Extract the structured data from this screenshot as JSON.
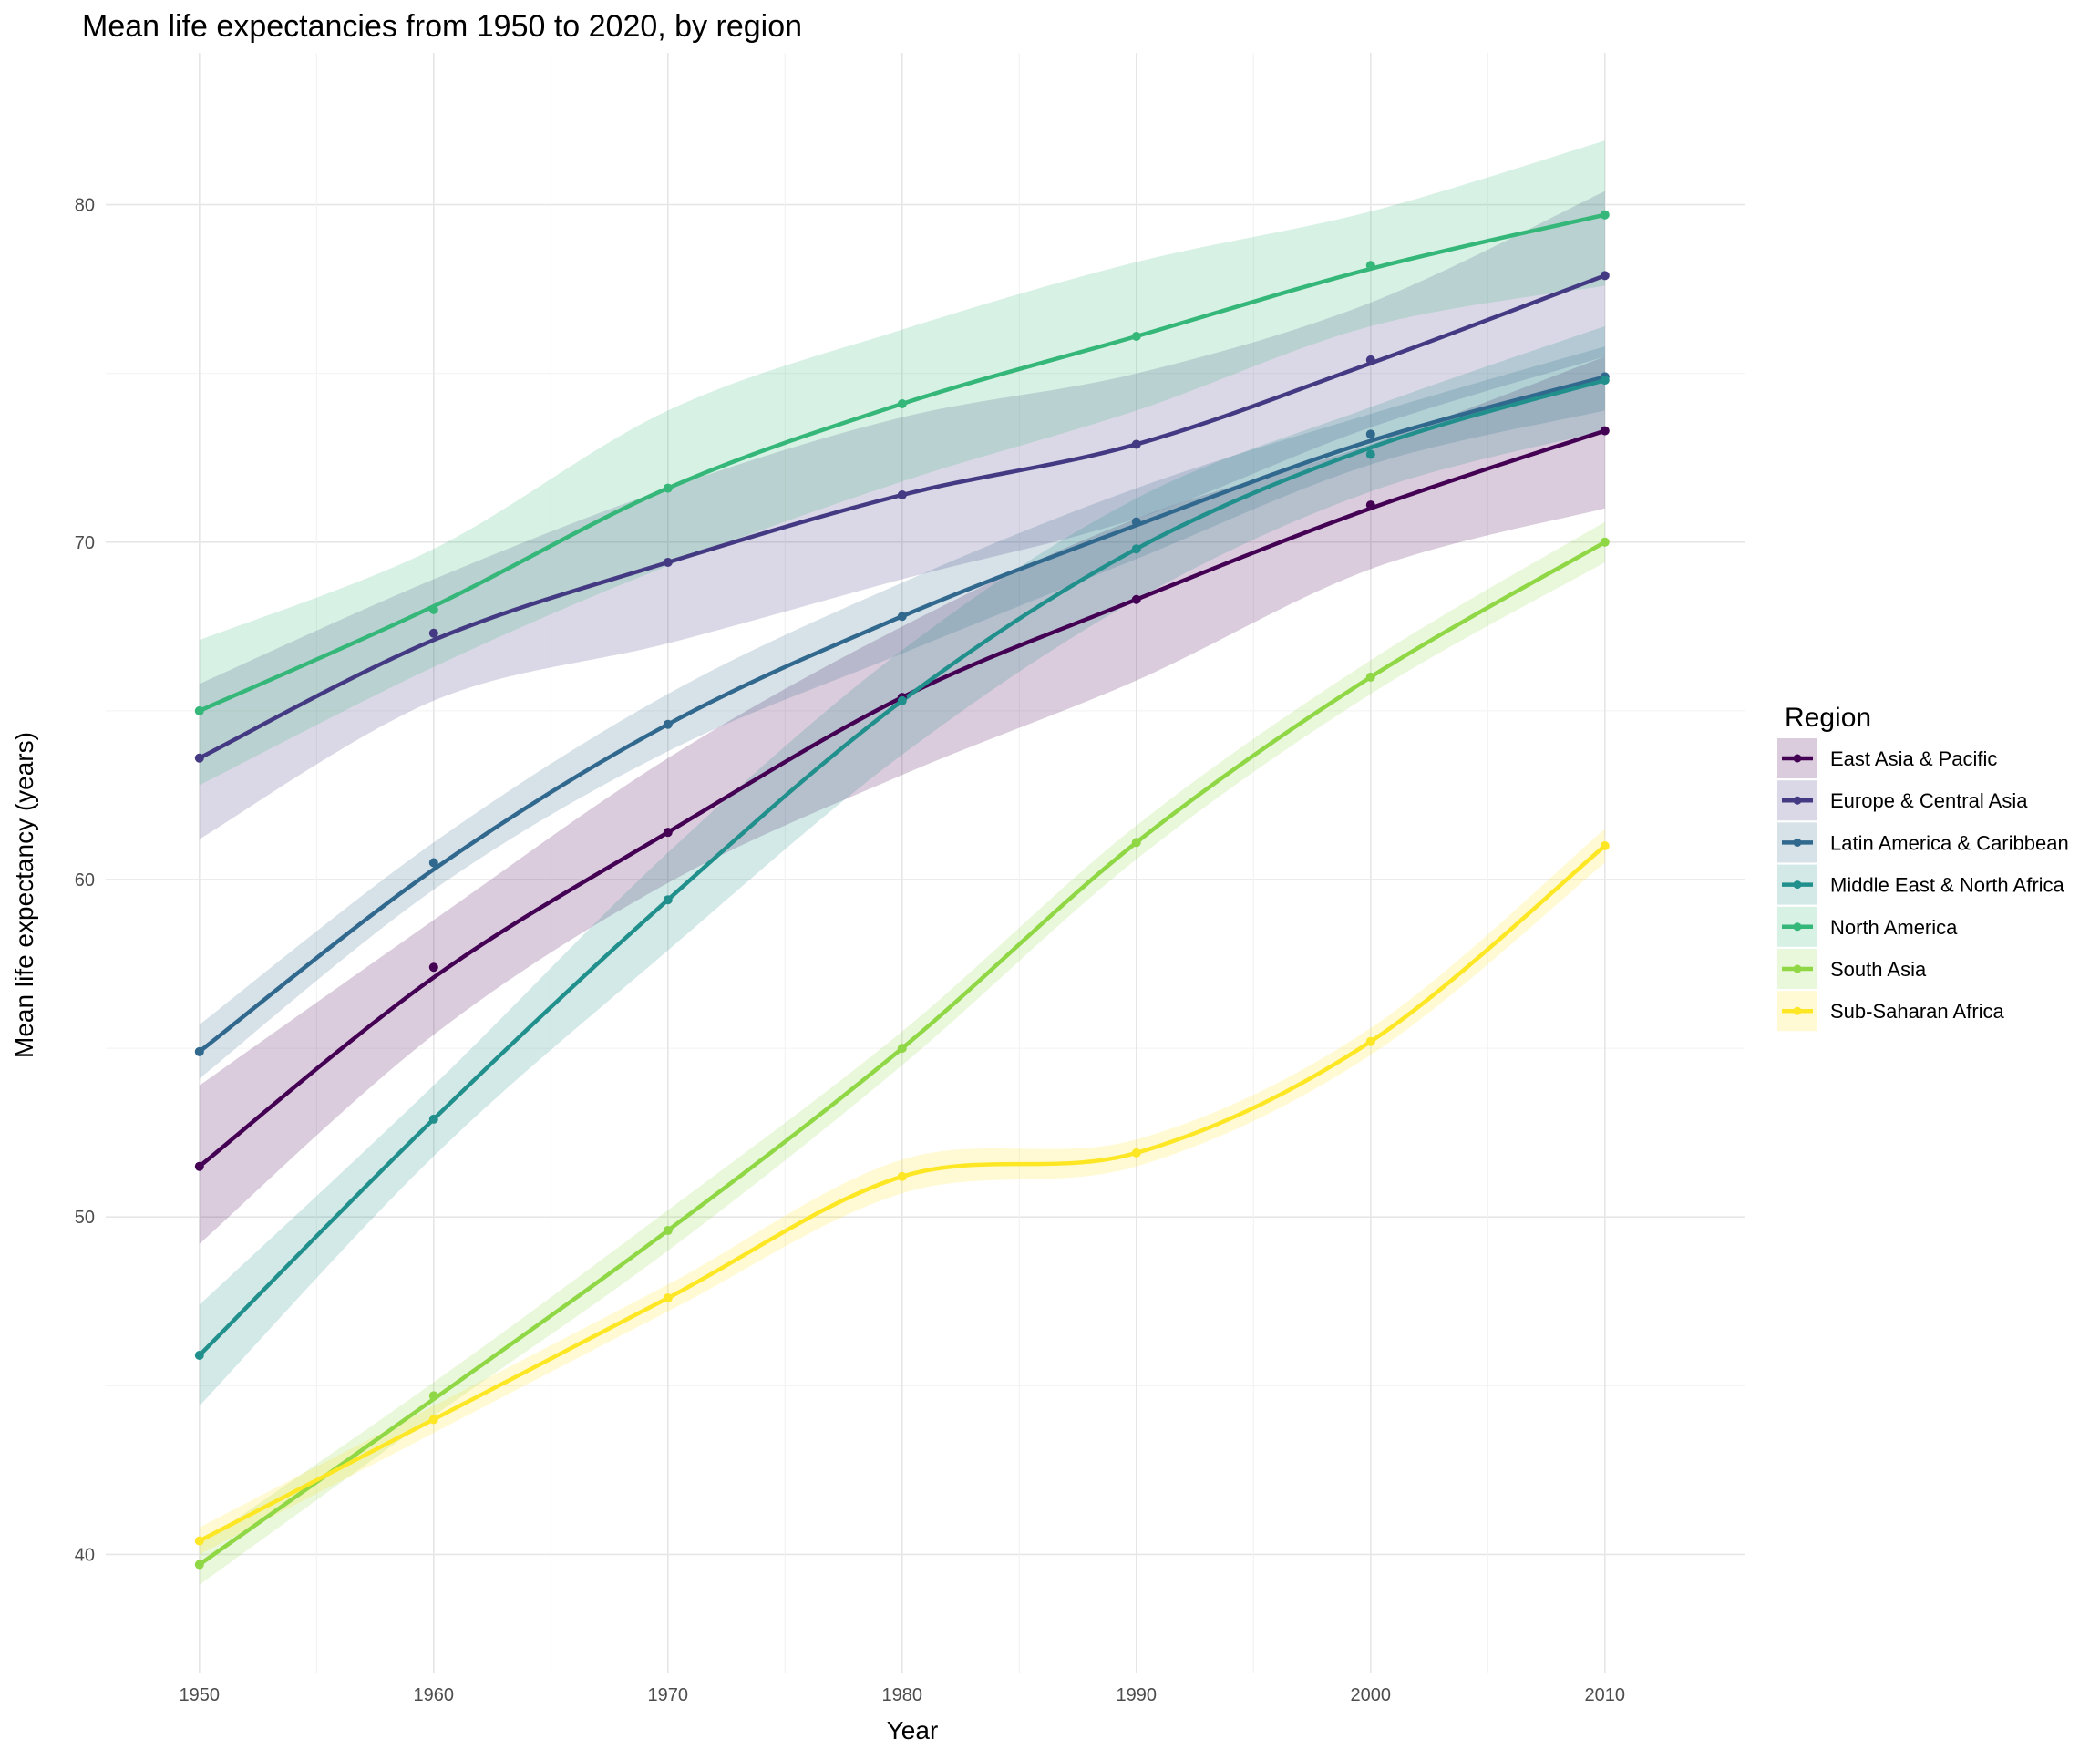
{
  "chart_data": {
    "type": "line",
    "title": "Mean life expectancies from 1950 to 2020, by region",
    "xlabel": "Year",
    "ylabel": "Mean life expectancy (years)",
    "xlim": [
      1946,
      2016
    ],
    "ylim": [
      36.5,
      84.5
    ],
    "x_ticks": [
      1950,
      1960,
      1970,
      1980,
      1990,
      2000,
      2010
    ],
    "y_ticks": [
      40,
      50,
      60,
      70,
      80
    ],
    "grid": true,
    "legend_title": "Region",
    "legend_position": "right",
    "x": [
      1950,
      1960,
      1970,
      1980,
      1990,
      2000,
      2010
    ],
    "series": [
      {
        "name": "East Asia & Pacific",
        "color": "#440154",
        "points": [
          51.5,
          57.4,
          61.4,
          65.4,
          68.3,
          71.1,
          73.3
        ],
        "smooth": [
          51.5,
          57.1,
          61.4,
          65.4,
          68.3,
          71.0,
          73.3
        ],
        "lower": [
          49.2,
          55.4,
          59.9,
          63.1,
          65.9,
          69.2,
          71.0
        ],
        "upper": [
          53.9,
          58.8,
          63.6,
          67.5,
          70.7,
          72.9,
          75.5
        ]
      },
      {
        "name": "Europe & Central Asia",
        "color": "#443A83",
        "points": [
          63.6,
          67.3,
          69.4,
          71.4,
          72.9,
          75.4,
          77.9
        ],
        "smooth": [
          63.6,
          67.1,
          69.4,
          71.4,
          72.9,
          75.3,
          77.9
        ],
        "lower": [
          61.2,
          65.3,
          67.0,
          68.9,
          70.7,
          73.4,
          75.5
        ],
        "upper": [
          65.8,
          68.9,
          71.6,
          73.7,
          75.0,
          77.1,
          80.4
        ]
      },
      {
        "name": "Latin America & Caribbean",
        "color": "#31688E",
        "points": [
          54.9,
          60.5,
          64.6,
          67.8,
          70.6,
          73.2,
          74.9
        ],
        "smooth": [
          54.9,
          60.3,
          64.6,
          67.8,
          70.5,
          73.0,
          74.9
        ],
        "lower": [
          54.1,
          59.7,
          63.8,
          66.7,
          69.5,
          72.3,
          73.9
        ],
        "upper": [
          55.7,
          61.1,
          65.5,
          68.8,
          71.6,
          73.8,
          75.8
        ]
      },
      {
        "name": "Middle East & North Africa",
        "color": "#21908C",
        "points": [
          45.9,
          52.9,
          59.4,
          65.3,
          69.8,
          72.6,
          74.8
        ],
        "smooth": [
          45.9,
          52.9,
          59.4,
          65.3,
          69.8,
          72.8,
          74.8
        ],
        "lower": [
          44.4,
          51.8,
          57.9,
          63.7,
          68.3,
          71.5,
          73.3
        ],
        "upper": [
          47.4,
          53.9,
          60.8,
          66.8,
          71.3,
          74.0,
          76.4
        ]
      },
      {
        "name": "North America",
        "color": "#35B779",
        "points": [
          65.0,
          68.0,
          71.6,
          74.1,
          76.1,
          78.2,
          79.7
        ],
        "smooth": [
          65.0,
          68.1,
          71.6,
          74.1,
          76.1,
          78.1,
          79.7
        ],
        "lower": [
          62.8,
          66.3,
          69.3,
          71.8,
          73.9,
          76.4,
          77.6
        ],
        "upper": [
          67.1,
          69.8,
          73.9,
          76.3,
          78.3,
          79.8,
          81.9
        ]
      },
      {
        "name": "South Asia",
        "color": "#8FD744",
        "points": [
          39.7,
          44.7,
          49.6,
          55.0,
          61.1,
          66.0,
          70.0
        ],
        "smooth": [
          39.7,
          44.6,
          49.6,
          55.0,
          61.1,
          66.0,
          70.0
        ],
        "lower": [
          39.1,
          44.1,
          49.0,
          54.5,
          60.6,
          65.5,
          69.4
        ],
        "upper": [
          40.3,
          45.1,
          50.2,
          55.5,
          61.6,
          66.5,
          70.6
        ]
      },
      {
        "name": "Sub-Saharan Africa",
        "color": "#FDE725",
        "points": [
          40.4,
          44.0,
          47.6,
          51.2,
          51.9,
          55.2,
          61.0
        ],
        "smooth": [
          40.4,
          44.0,
          47.6,
          51.2,
          51.9,
          55.2,
          61.0
        ],
        "lower": [
          40.0,
          43.6,
          47.2,
          50.7,
          51.5,
          54.8,
          60.5
        ],
        "upper": [
          40.8,
          44.4,
          48.0,
          51.7,
          52.3,
          55.6,
          61.5
        ]
      }
    ]
  }
}
